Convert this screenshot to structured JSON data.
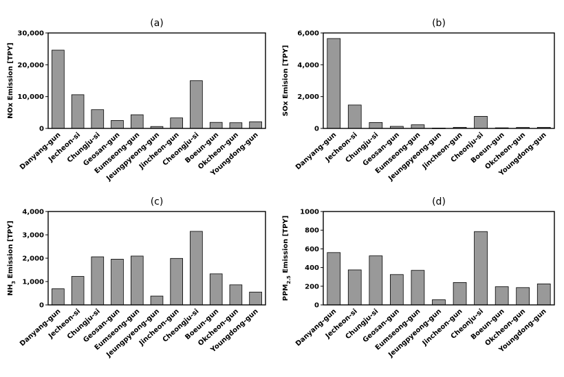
{
  "chart_data": [
    {
      "type": "bar",
      "panel_label": "(a)",
      "ylabel": "NOx Emission [TPY]",
      "ylim": [
        0,
        30000
      ],
      "yticks": [
        0,
        10000,
        20000,
        30000
      ],
      "ytick_labels": [
        "0",
        "10,000",
        "20,000",
        "30,000"
      ],
      "categories": [
        "Danyang-gun",
        "Jecheon-si",
        "Chungju-si",
        "Geosan-gun",
        "Eumseong-gun",
        "Jeungpyeong-gun",
        "Jincheon-gun",
        "Cheongju-si",
        "Boeun-gun",
        "Okcheon-gun",
        "Youngdong-gun"
      ],
      "values": [
        24600,
        10600,
        5900,
        2500,
        4300,
        600,
        3300,
        15000,
        1900,
        1800,
        2100
      ],
      "bar_color": "#999999",
      "grid": false
    },
    {
      "type": "bar",
      "panel_label": "(b)",
      "ylabel": "SOx Emision [TPY]",
      "ylim": [
        0,
        6000
      ],
      "yticks": [
        0,
        2000,
        4000,
        6000
      ],
      "ytick_labels": [
        "0",
        "2,000",
        "4,000",
        "6,000"
      ],
      "categories": [
        "Danyang-gun",
        "Jecheon-si",
        "Chungju-si",
        "Geosan-gun",
        "Eumseong-gun",
        "Jeungpyeong-gun",
        "Jincheon-gun",
        "Cheonju-si",
        "Boeun-gun",
        "Okcheon-gun",
        "Youngdong-gun"
      ],
      "values": [
        5650,
        1470,
        370,
        130,
        230,
        20,
        70,
        760,
        40,
        60,
        70
      ],
      "bar_color": "#999999",
      "grid": false
    },
    {
      "type": "bar",
      "panel_label": "(c)",
      "ylabel": "NH3 Emission [TPY]",
      "ylabel_main": "NH",
      "ylabel_sub": "3",
      "ylabel_tail": " Emission [TPY]",
      "ylim": [
        0,
        4000
      ],
      "yticks": [
        0,
        1000,
        2000,
        3000,
        4000
      ],
      "ytick_labels": [
        "0",
        "1,000",
        "2,000",
        "3,000",
        "4,000"
      ],
      "categories": [
        "Danyang-gun",
        "Jecheon-si",
        "Chungju-si",
        "Geosan-gun",
        "Eumseong-gun",
        "Jeungpyeong-gun",
        "Jincheon-gun",
        "Cheongju-si",
        "Boeun-gun",
        "Okcheon-gun",
        "Youngdong-gun"
      ],
      "values": [
        690,
        1220,
        2060,
        1960,
        2090,
        380,
        1990,
        3150,
        1330,
        860,
        550
      ],
      "bar_color": "#999999",
      "grid": false
    },
    {
      "type": "bar",
      "panel_label": "(d)",
      "ylabel": "PPM2.5 Emission [TPY]",
      "ylabel_main": "PPM",
      "ylabel_sub": "2.5",
      "ylabel_tail": " Emission [TPY]",
      "ylim": [
        0,
        1000
      ],
      "yticks": [
        0,
        200,
        400,
        600,
        800,
        1000
      ],
      "ytick_labels": [
        "0",
        "200",
        "400",
        "600",
        "800",
        "1000"
      ],
      "categories": [
        "Danyang-gun",
        "Jecheon-si",
        "Chungju-si",
        "Geosan-gun",
        "Eumseong-gun",
        "Jeungpyeong-gun",
        "Jincheon-gun",
        "Cheonju-si",
        "Boeun-gun",
        "Okcheon-gun",
        "Youngdong-gun"
      ],
      "values": [
        560,
        375,
        525,
        325,
        370,
        55,
        240,
        785,
        195,
        185,
        225
      ],
      "bar_color": "#999999",
      "grid": false
    }
  ]
}
